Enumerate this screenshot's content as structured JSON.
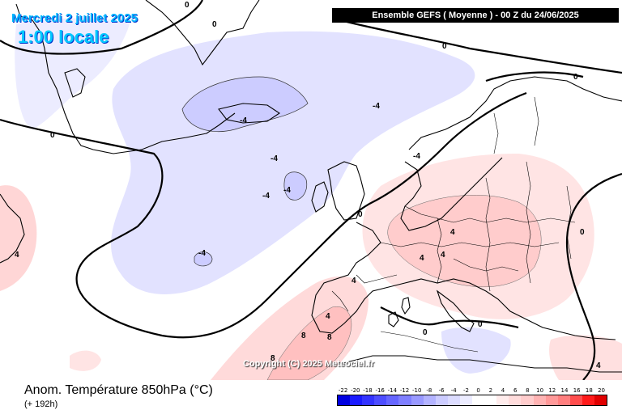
{
  "map": {
    "valid_date": "Mercredi 2 juillet 2025",
    "valid_hour": "1:00 locale",
    "run_info": "Ensemble GEFS  ( Moyenne )  -  00 Z du 24/06/2025",
    "copyright": "Copyright (C) 2025 Meteociel.fr",
    "parameter": "Anom. Température 850hPa (°C)",
    "lead_time": "(+ 192h)",
    "contour_labels": [
      "0",
      "0",
      "0",
      "0",
      "0",
      "0",
      "0",
      "0",
      "-4",
      "-4",
      "-4",
      "-4",
      "-4",
      "-4",
      "-4",
      "4",
      "4",
      "4",
      "4",
      "4",
      "4",
      "8",
      "8",
      "8",
      "4",
      "0"
    ],
    "legend": {
      "labels": [
        "-22",
        "-20",
        "-18",
        "-16",
        "-14",
        "-12",
        "-10",
        "-8",
        "-6",
        "-4",
        "-2",
        "0",
        "2",
        "4",
        "6",
        "8",
        "10",
        "12",
        "14",
        "16",
        "18",
        "20"
      ],
      "colors": [
        "#0000e0",
        "#1a1aff",
        "#3333ff",
        "#4d4dff",
        "#6666ff",
        "#7f7fff",
        "#9999ff",
        "#b3b3ff",
        "#ccccff",
        "#dcdcff",
        "#ececff",
        "#ffffff",
        "#ffffff",
        "#ffecec",
        "#ffdcdc",
        "#ffcccc",
        "#ffb3b3",
        "#ff9999",
        "#ff7f7f",
        "#ff4d4d",
        "#ff1a1a",
        "#e00000"
      ]
    }
  }
}
